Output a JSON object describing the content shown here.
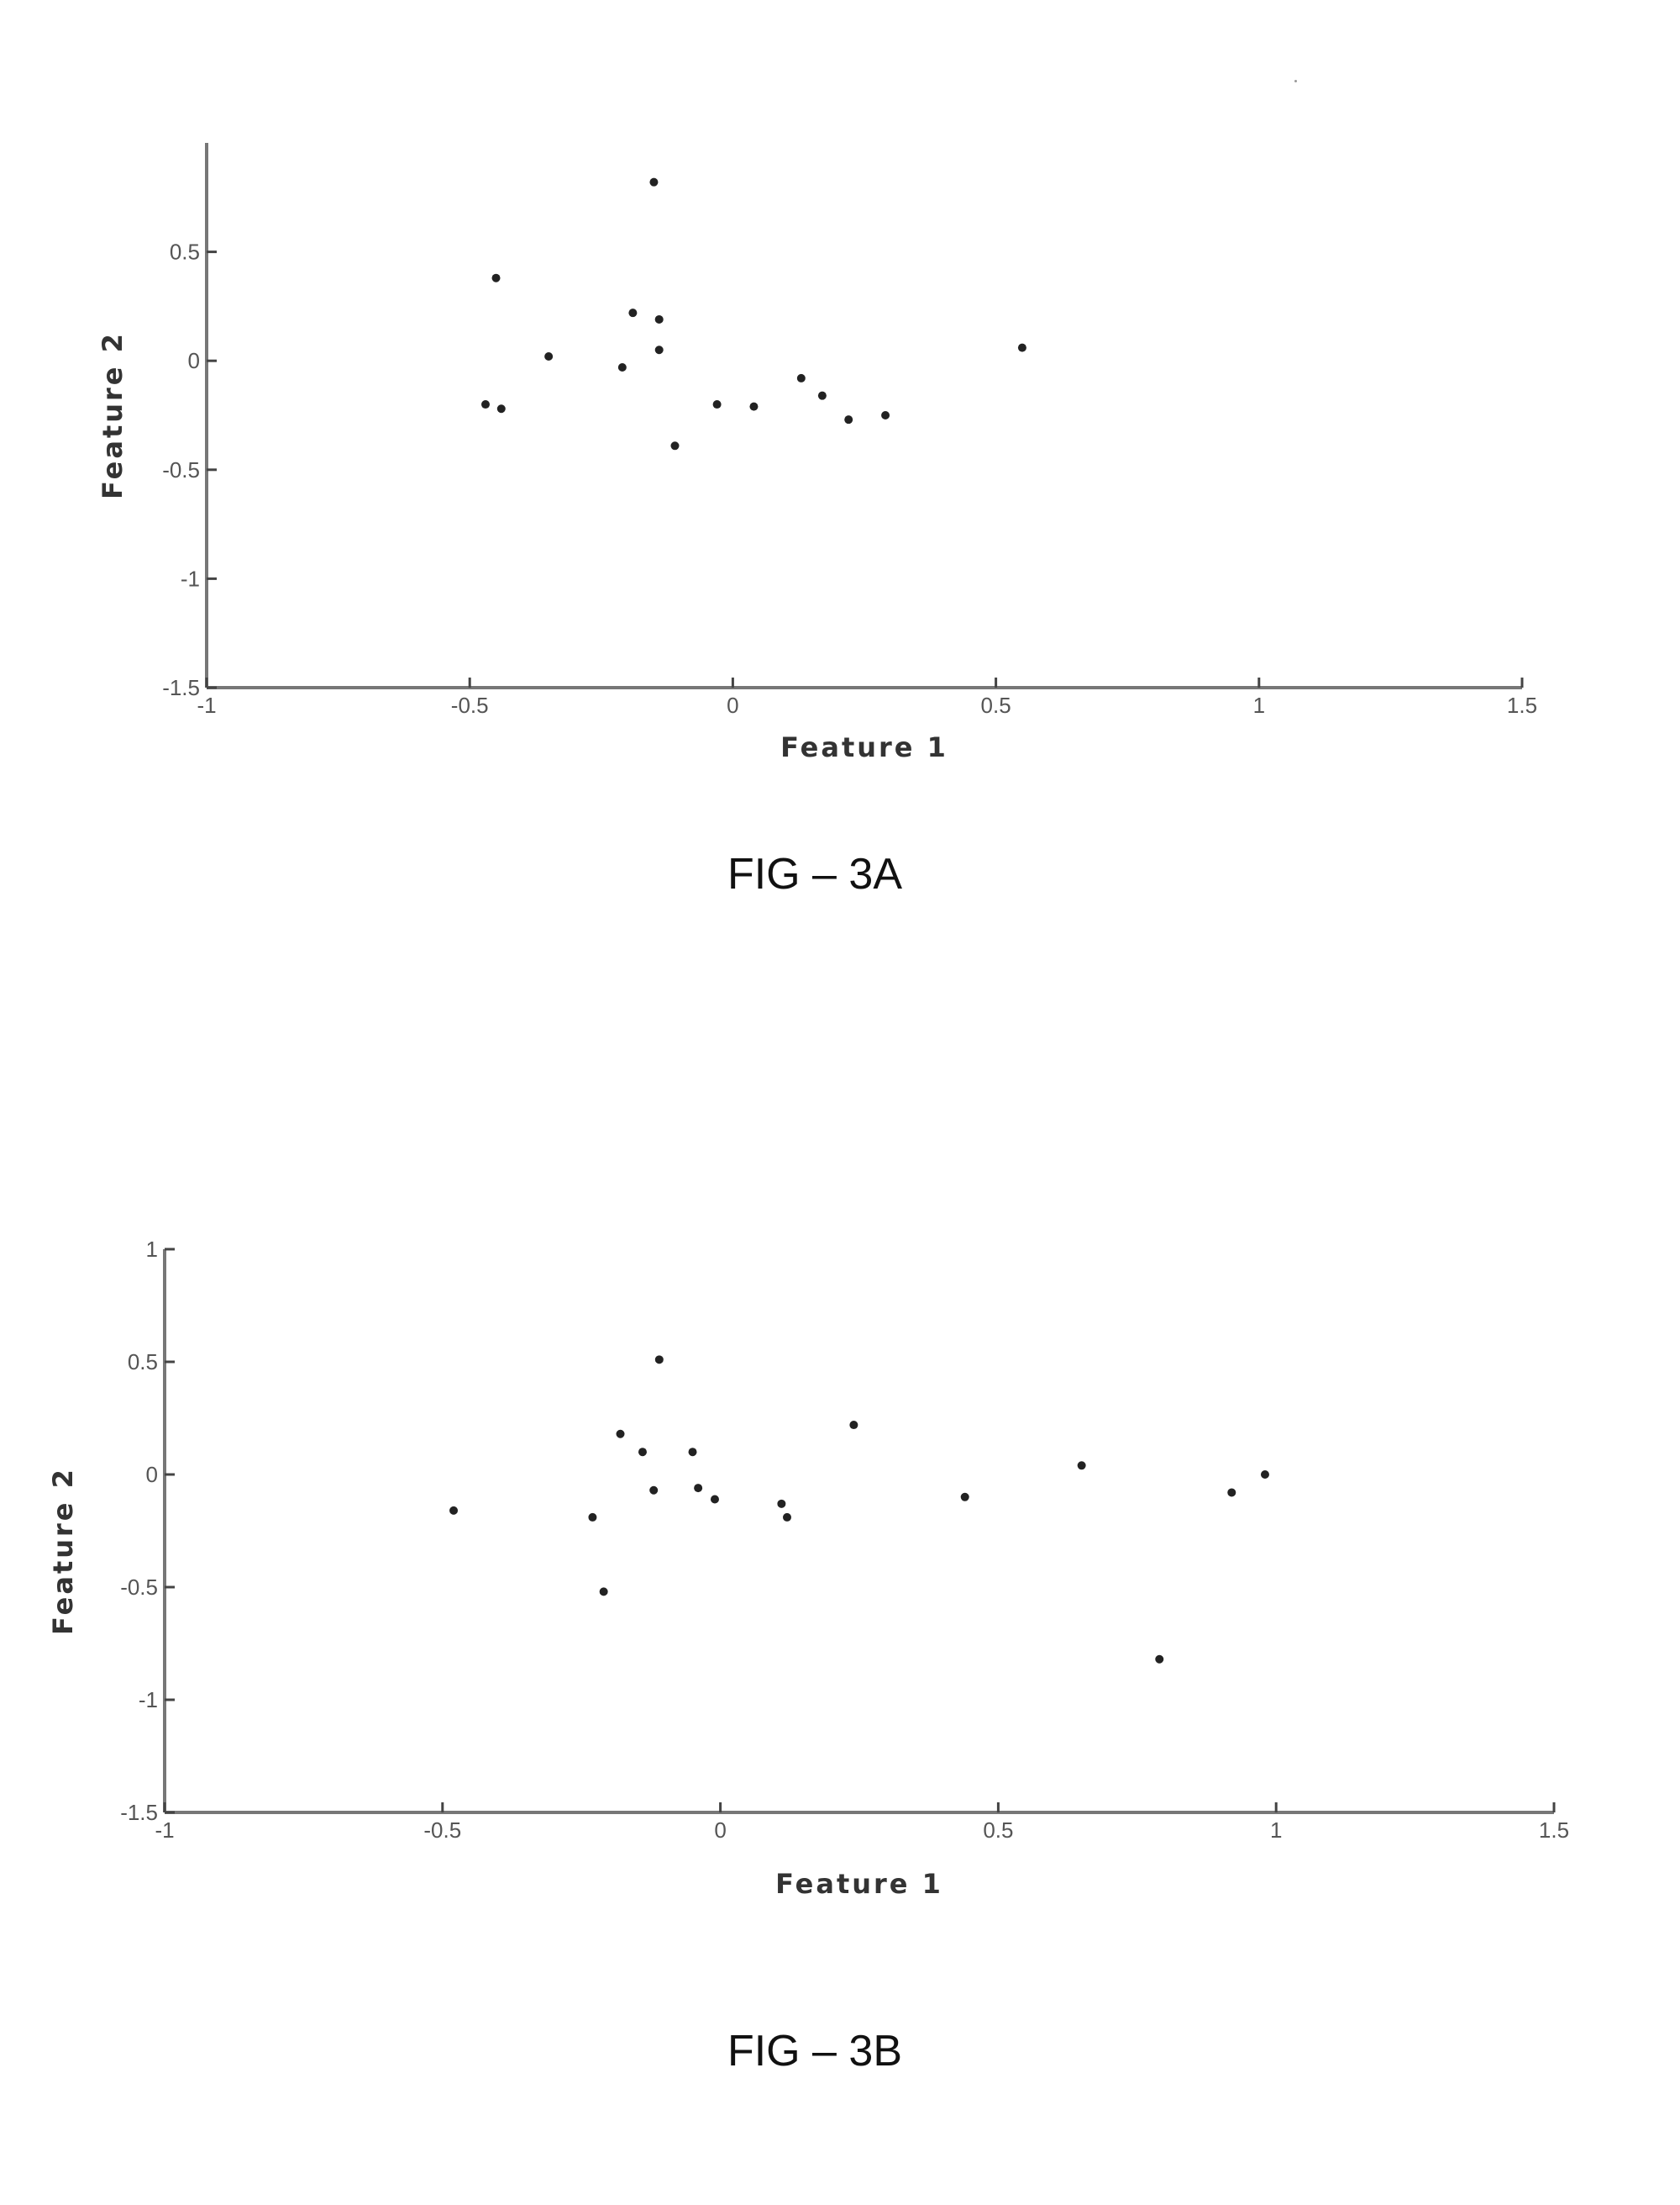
{
  "figures": [
    {
      "caption": "FIG – 3A",
      "chart_data": {
        "type": "scatter",
        "title": "",
        "xlabel": "Feature 1",
        "ylabel": "Feature 2",
        "xlim": [
          -1,
          1.5
        ],
        "ylim": [
          -1.5,
          1.0
        ],
        "xticks": [
          -1,
          -0.5,
          0,
          0.5,
          1,
          1.5
        ],
        "xtick_labels": [
          "-1",
          "-0.5",
          "0",
          "0.5",
          "1",
          "1.5"
        ],
        "yticks": [
          -1.5,
          -1,
          -0.5,
          0,
          0.5
        ],
        "ytick_labels": [
          "-1.5",
          "-1",
          "-0.5",
          "0",
          "0.5"
        ],
        "grid": false,
        "points": [
          {
            "x": -0.15,
            "y": 0.82
          },
          {
            "x": -0.45,
            "y": 0.38
          },
          {
            "x": -0.19,
            "y": 0.22
          },
          {
            "x": -0.14,
            "y": 0.19
          },
          {
            "x": -0.14,
            "y": 0.05
          },
          {
            "x": -0.35,
            "y": 0.02
          },
          {
            "x": -0.21,
            "y": -0.03
          },
          {
            "x": -0.47,
            "y": -0.2
          },
          {
            "x": -0.44,
            "y": -0.22
          },
          {
            "x": -0.11,
            "y": -0.39
          },
          {
            "x": -0.03,
            "y": -0.2
          },
          {
            "x": 0.04,
            "y": -0.21
          },
          {
            "x": 0.13,
            "y": -0.08
          },
          {
            "x": 0.17,
            "y": -0.16
          },
          {
            "x": 0.22,
            "y": -0.27
          },
          {
            "x": 0.29,
            "y": -0.25
          },
          {
            "x": 0.55,
            "y": 0.06
          }
        ]
      }
    },
    {
      "caption": "FIG – 3B",
      "chart_data": {
        "type": "scatter",
        "title": "",
        "xlabel": "Feature 1",
        "ylabel": "Feature 2",
        "xlim": [
          -1,
          1.5
        ],
        "ylim": [
          -1.5,
          1.0
        ],
        "xticks": [
          -1,
          -0.5,
          0,
          0.5,
          1,
          1.5
        ],
        "xtick_labels": [
          "-1",
          "-0.5",
          "0",
          "0.5",
          "1",
          "1.5"
        ],
        "yticks": [
          -1.5,
          -1,
          -0.5,
          0,
          0.5,
          1
        ],
        "ytick_labels": [
          "-1.5",
          "-1",
          "-0.5",
          "0",
          "0.5",
          "1"
        ],
        "grid": false,
        "points": [
          {
            "x": -0.11,
            "y": 0.51
          },
          {
            "x": -0.18,
            "y": 0.18
          },
          {
            "x": -0.14,
            "y": 0.1
          },
          {
            "x": -0.05,
            "y": 0.1
          },
          {
            "x": -0.12,
            "y": -0.07
          },
          {
            "x": -0.04,
            "y": -0.06
          },
          {
            "x": -0.01,
            "y": -0.11
          },
          {
            "x": -0.48,
            "y": -0.16
          },
          {
            "x": -0.23,
            "y": -0.19
          },
          {
            "x": -0.21,
            "y": -0.52
          },
          {
            "x": 0.11,
            "y": -0.13
          },
          {
            "x": 0.12,
            "y": -0.19
          },
          {
            "x": 0.24,
            "y": 0.22
          },
          {
            "x": 0.44,
            "y": -0.1
          },
          {
            "x": 0.65,
            "y": 0.04
          },
          {
            "x": 0.79,
            "y": -0.82
          },
          {
            "x": 0.92,
            "y": -0.08
          },
          {
            "x": 0.98,
            "y": 0.0
          }
        ]
      }
    }
  ]
}
